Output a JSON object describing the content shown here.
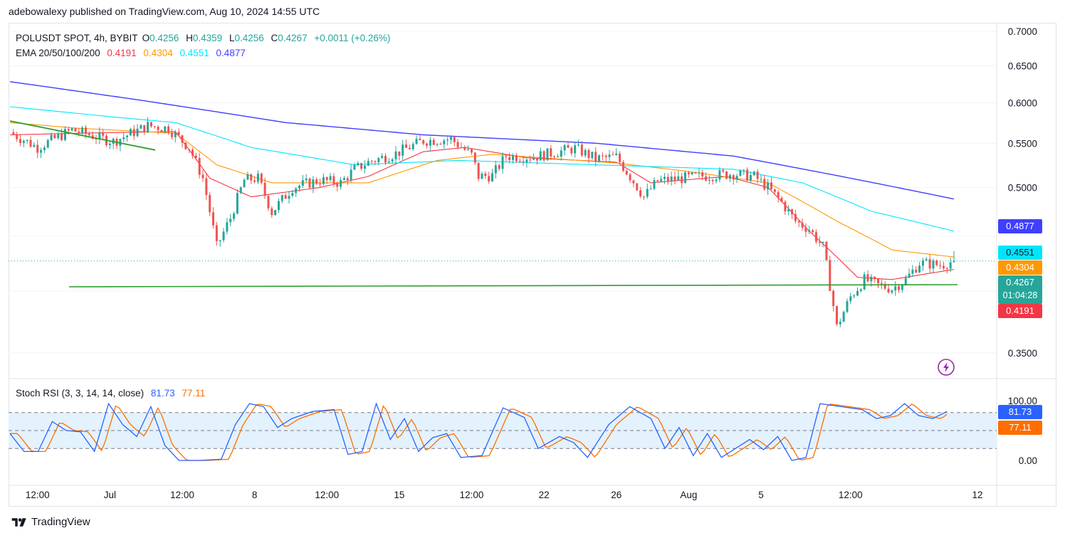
{
  "header": {
    "published_by": "adebowalexy published on TradingView.com, Aug 10, 2024 14:55 UTC"
  },
  "legend": {
    "symbol": "POLUSDT SPOT, 4h, BYBIT",
    "o_label": "O",
    "o": "0.4256",
    "h_label": "H",
    "h": "0.4359",
    "l_label": "L",
    "l": "0.4256",
    "c_label": "C",
    "c": "0.4267",
    "change": "+0.0011 (+0.26%)",
    "ema_label": "EMA 20/50/100/200",
    "ema20": "0.4191",
    "ema50": "0.4304",
    "ema100": "0.4551",
    "ema200": "0.4877"
  },
  "rsi_legend": {
    "label": "Stoch RSI (3, 3, 14, 14, close)",
    "k": "81.73",
    "d": "77.11"
  },
  "price_axis": {
    "ticks": [
      "0.7000",
      "0.6500",
      "0.6000",
      "0.5500",
      "0.5000",
      "0.3500"
    ]
  },
  "rsi_axis": {
    "ticks": [
      "100.00",
      "0.00"
    ]
  },
  "time_axis": {
    "ticks": [
      "12:00",
      "Jul",
      "12:00",
      "8",
      "12:00",
      "15",
      "12:00",
      "22",
      "26",
      "Aug",
      "5",
      "12:00",
      "12"
    ]
  },
  "price_tags": {
    "ema200": "0.4877",
    "ema100": "0.4551",
    "ema50": "0.4304",
    "last": "0.4267",
    "countdown": "01:04:28",
    "ema20": "0.4191",
    "rsi_k": "81.73",
    "rsi_d": "77.11"
  },
  "colors": {
    "up": "#26a69a",
    "down": "#ef5350",
    "ema20": "#f23645",
    "ema50": "#ff9800",
    "ema100": "#00e5ff",
    "ema200": "#3f3fff",
    "support": "#2e9e2e",
    "rsi_k": "#2962ff",
    "rsi_d": "#ff6d00",
    "rsi_band": "#e3f2fd"
  },
  "footer": {
    "brand": "TradingView"
  },
  "chart_data": {
    "type": "candlestick",
    "symbol": "POLUSDT SPOT",
    "timeframe": "4h",
    "exchange": "BYBIT",
    "ylim": [
      0.33,
      0.71
    ],
    "y_scale": "log",
    "last": {
      "open": 0.4256,
      "high": 0.4359,
      "low": 0.4256,
      "close": 0.4267
    },
    "close_path": [
      [
        0,
        0.563
      ],
      [
        8,
        0.545
      ],
      [
        18,
        0.566
      ],
      [
        30,
        0.552
      ],
      [
        40,
        0.571
      ],
      [
        46,
        0.568
      ],
      [
        52,
        0.545
      ],
      [
        56,
        0.51
      ],
      [
        60,
        0.44
      ],
      [
        64,
        0.468
      ],
      [
        68,
        0.508
      ],
      [
        72,
        0.51
      ],
      [
        76,
        0.474
      ],
      [
        82,
        0.5
      ],
      [
        90,
        0.508
      ],
      [
        96,
        0.505
      ],
      [
        100,
        0.52
      ],
      [
        104,
        0.528
      ],
      [
        112,
        0.538
      ],
      [
        120,
        0.553
      ],
      [
        128,
        0.555
      ],
      [
        134,
        0.536
      ],
      [
        136,
        0.512
      ],
      [
        140,
        0.513
      ],
      [
        144,
        0.535
      ],
      [
        152,
        0.534
      ],
      [
        164,
        0.544
      ],
      [
        170,
        0.532
      ],
      [
        176,
        0.534
      ],
      [
        180,
        0.512
      ],
      [
        184,
        0.49
      ],
      [
        188,
        0.507
      ],
      [
        200,
        0.512
      ],
      [
        210,
        0.515
      ],
      [
        216,
        0.512
      ],
      [
        220,
        0.5
      ],
      [
        224,
        0.484
      ],
      [
        228,
        0.465
      ],
      [
        232,
        0.457
      ],
      [
        236,
        0.44
      ],
      [
        240,
        0.37
      ],
      [
        244,
        0.395
      ],
      [
        248,
        0.41
      ],
      [
        252,
        0.405
      ],
      [
        256,
        0.402
      ],
      [
        260,
        0.41
      ],
      [
        264,
        0.425
      ],
      [
        270,
        0.423
      ],
      [
        274,
        0.4267
      ]
    ],
    "ema": [
      {
        "name": "EMA 20",
        "last": 0.4191,
        "path": [
          [
            0,
            0.56
          ],
          [
            20,
            0.562
          ],
          [
            48,
            0.564
          ],
          [
            58,
            0.51
          ],
          [
            70,
            0.49
          ],
          [
            90,
            0.5
          ],
          [
            104,
            0.512
          ],
          [
            120,
            0.54
          ],
          [
            132,
            0.545
          ],
          [
            150,
            0.533
          ],
          [
            176,
            0.528
          ],
          [
            186,
            0.505
          ],
          [
            208,
            0.512
          ],
          [
            220,
            0.5
          ],
          [
            232,
            0.455
          ],
          [
            246,
            0.412
          ],
          [
            256,
            0.41
          ],
          [
            274,
            0.4191
          ]
        ]
      },
      {
        "name": "EMA 50",
        "last": 0.4304,
        "path": [
          [
            0,
            0.575
          ],
          [
            20,
            0.568
          ],
          [
            48,
            0.562
          ],
          [
            60,
            0.525
          ],
          [
            76,
            0.505
          ],
          [
            104,
            0.505
          ],
          [
            124,
            0.53
          ],
          [
            140,
            0.537
          ],
          [
            176,
            0.527
          ],
          [
            196,
            0.518
          ],
          [
            220,
            0.505
          ],
          [
            240,
            0.465
          ],
          [
            256,
            0.437
          ],
          [
            274,
            0.4304
          ]
        ]
      },
      {
        "name": "EMA 100",
        "last": 0.4551,
        "path": [
          [
            0,
            0.595
          ],
          [
            30,
            0.582
          ],
          [
            48,
            0.575
          ],
          [
            70,
            0.545
          ],
          [
            100,
            0.525
          ],
          [
            130,
            0.53
          ],
          [
            170,
            0.525
          ],
          [
            210,
            0.52
          ],
          [
            230,
            0.505
          ],
          [
            250,
            0.475
          ],
          [
            274,
            0.4551
          ]
        ]
      },
      {
        "name": "EMA 200",
        "last": 0.4877,
        "path": [
          [
            0,
            0.628
          ],
          [
            40,
            0.602
          ],
          [
            80,
            0.575
          ],
          [
            120,
            0.56
          ],
          [
            170,
            0.55
          ],
          [
            210,
            0.535
          ],
          [
            240,
            0.513
          ],
          [
            274,
            0.4877
          ]
        ]
      }
    ],
    "support_line": 0.422,
    "support_trendline": [
      [
        0,
        0.577
      ],
      [
        40,
        0.542
      ]
    ],
    "stoch_rsi": {
      "ylim": [
        0,
        100
      ],
      "bands": [
        20,
        50,
        80
      ],
      "k_last": 81.73,
      "d_last": 77.11,
      "k_path": [
        [
          0,
          45
        ],
        [
          4,
          15
        ],
        [
          8,
          15
        ],
        [
          12,
          65
        ],
        [
          16,
          50
        ],
        [
          20,
          48
        ],
        [
          24,
          15
        ],
        [
          28,
          95
        ],
        [
          32,
          60
        ],
        [
          36,
          40
        ],
        [
          40,
          90
        ],
        [
          44,
          25
        ],
        [
          48,
          0
        ],
        [
          54,
          0
        ],
        [
          60,
          2
        ],
        [
          64,
          60
        ],
        [
          68,
          95
        ],
        [
          72,
          90
        ],
        [
          76,
          55
        ],
        [
          80,
          70
        ],
        [
          86,
          82
        ],
        [
          92,
          85
        ],
        [
          96,
          10
        ],
        [
          100,
          15
        ],
        [
          104,
          95
        ],
        [
          108,
          35
        ],
        [
          112,
          70
        ],
        [
          116,
          15
        ],
        [
          120,
          38
        ],
        [
          124,
          45
        ],
        [
          128,
          5
        ],
        [
          134,
          8
        ],
        [
          140,
          88
        ],
        [
          146,
          72
        ],
        [
          150,
          20
        ],
        [
          156,
          40
        ],
        [
          160,
          30
        ],
        [
          164,
          5
        ],
        [
          170,
          60
        ],
        [
          176,
          90
        ],
        [
          182,
          70
        ],
        [
          186,
          20
        ],
        [
          190,
          55
        ],
        [
          194,
          8
        ],
        [
          198,
          45
        ],
        [
          202,
          5
        ],
        [
          206,
          20
        ],
        [
          210,
          35
        ],
        [
          214,
          18
        ],
        [
          218,
          40
        ],
        [
          222,
          0
        ],
        [
          226,
          5
        ],
        [
          230,
          95
        ],
        [
          236,
          90
        ],
        [
          242,
          85
        ],
        [
          246,
          70
        ],
        [
          250,
          75
        ],
        [
          254,
          95
        ],
        [
          258,
          75
        ],
        [
          262,
          70
        ],
        [
          266,
          81.73
        ]
      ]
    }
  }
}
